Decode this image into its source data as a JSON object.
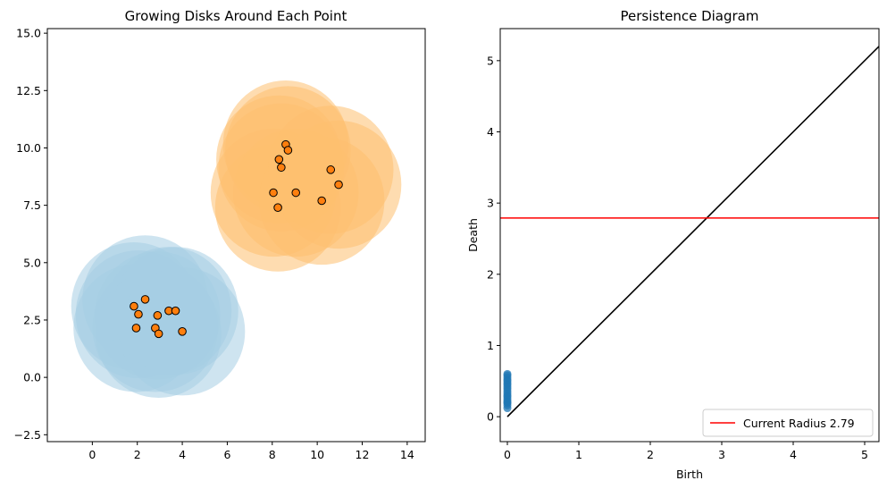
{
  "chart_data": [
    {
      "type": "scatter",
      "title": "Growing Disks Around Each Point",
      "xlabel": "",
      "ylabel": "",
      "xlim": [
        -2,
        14.8
      ],
      "ylim": [
        -2.8,
        15.2
      ],
      "xticks": [
        0,
        2,
        4,
        6,
        8,
        10,
        12,
        14
      ],
      "yticks": [
        -2.5,
        0.0,
        2.5,
        5.0,
        7.5,
        10.0,
        12.5,
        15.0
      ],
      "xtick_labels": [
        "0",
        "2",
        "4",
        "6",
        "8",
        "10",
        "12",
        "14"
      ],
      "ytick_labels": [
        "−2.5",
        "0.0",
        "2.5",
        "5.0",
        "7.5",
        "10.0",
        "12.5",
        "15.0"
      ],
      "grid": false,
      "disk_radius": 2.79,
      "series": [
        {
          "color": "#a6cee3",
          "marker_color": "#ff7f0e",
          "x": [
            1.85,
            2.05,
            1.95,
            2.35,
            2.8,
            2.9,
            2.95,
            3.4,
            3.7,
            4.0
          ],
          "y": [
            3.1,
            2.75,
            2.15,
            3.4,
            2.15,
            2.7,
            1.9,
            2.9,
            2.9,
            2.0
          ]
        },
        {
          "color": "#fdbf6f",
          "marker_color": "#ff7f0e",
          "x": [
            8.05,
            8.25,
            8.3,
            8.4,
            8.6,
            8.7,
            9.05,
            10.2,
            10.6,
            10.95
          ],
          "y": [
            8.05,
            7.4,
            9.5,
            9.15,
            10.15,
            9.9,
            8.05,
            7.7,
            9.05,
            8.4
          ]
        }
      ]
    },
    {
      "type": "scatter",
      "title": "Persistence Diagram",
      "xlabel": "Birth",
      "ylabel": "Death",
      "xlim": [
        -0.1,
        5.2
      ],
      "ylim": [
        -0.35,
        5.45
      ],
      "xticks": [
        0,
        1,
        2,
        3,
        4,
        5
      ],
      "yticks": [
        0,
        1,
        2,
        3,
        4,
        5
      ],
      "xtick_labels": [
        "0",
        "1",
        "2",
        "3",
        "4",
        "5"
      ],
      "ytick_labels": [
        "0",
        "1",
        "2",
        "3",
        "4",
        "5"
      ],
      "grid": false,
      "points": {
        "color": "#1f77b4",
        "birth": [
          0,
          0,
          0,
          0,
          0,
          0,
          0,
          0,
          0,
          0,
          0,
          0,
          0,
          0,
          0,
          0,
          0,
          0,
          0
        ],
        "death": [
          0.12,
          0.16,
          0.19,
          0.22,
          0.25,
          0.28,
          0.3,
          0.33,
          0.36,
          0.39,
          0.42,
          0.45,
          0.47,
          0.5,
          0.52,
          0.55,
          0.58,
          0.6,
          0.2
        ]
      },
      "diagonal": {
        "color": "#000000",
        "from": [
          0,
          0
        ],
        "to": [
          5.2,
          5.2
        ]
      },
      "hline": {
        "y": 2.79,
        "color": "#ff0000",
        "label": "Current Radius 2.79"
      },
      "legend_position": "lower-right"
    }
  ]
}
